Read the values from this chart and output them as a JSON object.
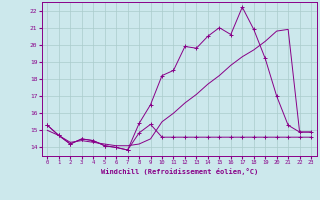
{
  "xlabel": "Windchill (Refroidissement éolien,°C)",
  "bg_color": "#cce8ec",
  "grid_color": "#aacccc",
  "line_color": "#880088",
  "xlim": [
    -0.5,
    23.5
  ],
  "ylim": [
    13.5,
    22.5
  ],
  "xticks": [
    0,
    1,
    2,
    3,
    4,
    5,
    6,
    7,
    8,
    9,
    10,
    11,
    12,
    13,
    14,
    15,
    16,
    17,
    18,
    19,
    20,
    21,
    22,
    23
  ],
  "yticks": [
    14,
    15,
    16,
    17,
    18,
    19,
    20,
    21,
    22
  ],
  "series1_x": [
    0,
    1,
    2,
    3,
    4,
    5,
    6,
    7,
    8,
    9,
    10,
    11,
    12,
    13,
    14,
    15,
    16,
    17,
    18,
    19,
    20,
    21,
    22,
    23
  ],
  "series1_y": [
    15.3,
    14.7,
    14.2,
    14.5,
    14.4,
    14.1,
    14.0,
    13.85,
    14.85,
    15.35,
    14.6,
    14.6,
    14.6,
    14.6,
    14.6,
    14.6,
    14.6,
    14.6,
    14.6,
    14.6,
    14.6,
    14.6,
    14.6,
    14.6
  ],
  "series2_x": [
    0,
    1,
    2,
    3,
    4,
    5,
    6,
    7,
    8,
    9,
    10,
    11,
    12,
    13,
    14,
    15,
    16,
    17,
    18,
    19,
    20,
    21,
    22,
    23
  ],
  "series2_y": [
    15.3,
    14.7,
    14.2,
    14.5,
    14.4,
    14.1,
    14.0,
    13.85,
    15.4,
    16.5,
    18.2,
    18.5,
    19.9,
    19.8,
    20.5,
    21.0,
    20.6,
    22.2,
    20.9,
    19.2,
    17.0,
    15.3,
    14.9,
    14.9
  ],
  "series3_x": [
    0,
    1,
    2,
    3,
    4,
    5,
    6,
    7,
    8,
    9,
    10,
    11,
    12,
    13,
    14,
    15,
    16,
    17,
    18,
    19,
    20,
    21,
    22,
    23
  ],
  "series3_y": [
    15.0,
    14.7,
    14.3,
    14.4,
    14.3,
    14.2,
    14.1,
    14.1,
    14.2,
    14.5,
    15.5,
    16.0,
    16.6,
    17.1,
    17.7,
    18.2,
    18.8,
    19.3,
    19.7,
    20.2,
    20.8,
    20.9,
    14.9,
    14.9
  ]
}
